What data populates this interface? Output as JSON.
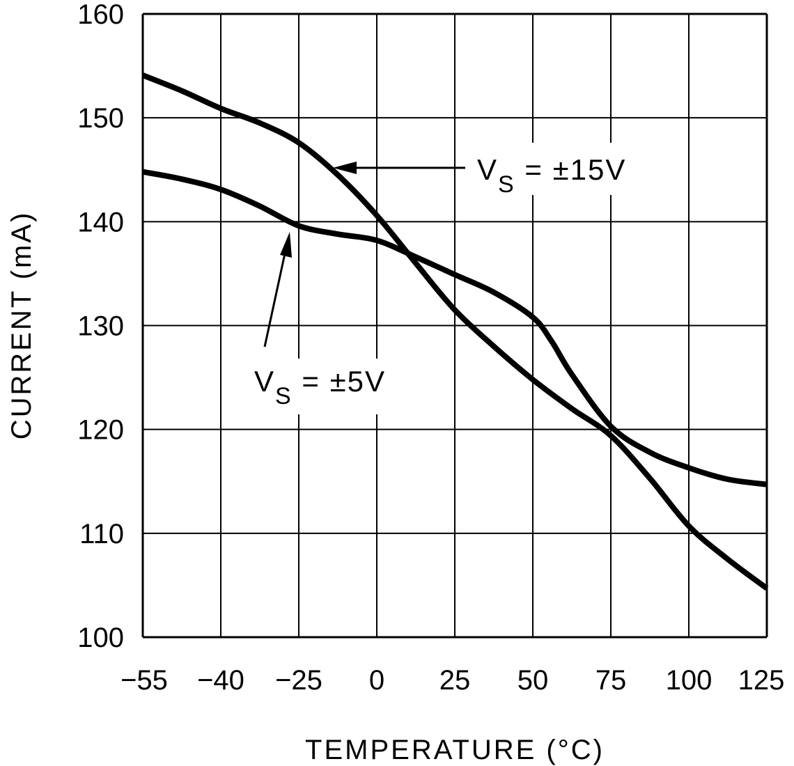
{
  "chart_data": {
    "type": "line",
    "title": "",
    "xlabel": "TEMPERATURE (°C)",
    "ylabel": "CURRENT (mA)",
    "x_ticks": [
      -55,
      -40,
      -25,
      0,
      25,
      50,
      75,
      100,
      125
    ],
    "x_tick_labels": [
      "−55",
      "−40",
      "−25",
      "0",
      "25",
      "50",
      "75",
      "100",
      "125"
    ],
    "y_ticks": [
      100,
      110,
      120,
      130,
      140,
      150,
      160
    ],
    "y_tick_labels": [
      "100",
      "110",
      "120",
      "130",
      "140",
      "150",
      "160"
    ],
    "xlim": [
      -55,
      125
    ],
    "ylim": [
      100,
      160
    ],
    "grid": true,
    "series": [
      {
        "name": "VS = ±15V",
        "x": [
          -55,
          -47.5,
          -40,
          -32.5,
          -25,
          -12.5,
          0,
          12.5,
          25,
          37.5,
          50,
          62.5,
          75,
          87.5,
          100,
          112.5,
          125
        ],
        "y": [
          154.1,
          152.6,
          150.9,
          149.5,
          147.6,
          144.5,
          140.6,
          136.0,
          131.5,
          128.0,
          124.8,
          122.0,
          119.4,
          115.3,
          110.7,
          107.5,
          104.7
        ]
      },
      {
        "name": "VS = ±5V",
        "x": [
          -55,
          -47.5,
          -40,
          -32.5,
          -25,
          -12.5,
          0,
          12.5,
          25,
          37.5,
          50,
          56,
          62.5,
          75,
          87.5,
          100,
          112.5,
          125
        ],
        "y": [
          144.8,
          144.1,
          143.1,
          141.5,
          139.6,
          138.8,
          138.2,
          136.6,
          134.9,
          133.2,
          130.8,
          128.5,
          125.3,
          120.3,
          117.8,
          116.3,
          115.2,
          114.7
        ]
      }
    ],
    "annotations": [
      {
        "series": "VS = ±15V",
        "prefix": "V",
        "sub": "S",
        "suffix": " = ±15V"
      },
      {
        "series": "VS = ±5V",
        "prefix": "V",
        "sub": "S",
        "suffix": " = ±5V"
      }
    ]
  }
}
